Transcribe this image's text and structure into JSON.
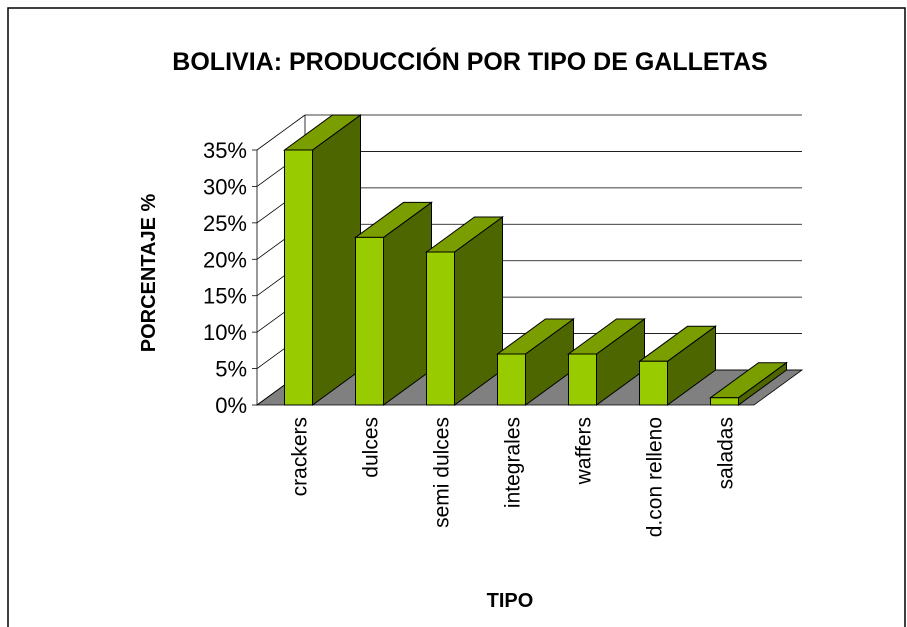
{
  "chart_data": {
    "type": "bar3d",
    "title": "BOLIVIA: PRODUCCIÓN POR TIPO DE GALLETAS",
    "x_label": "TIPO",
    "y_label": "PORCENTAJE %",
    "categories": [
      "crackers",
      "dulces",
      "semi dulces",
      "integrales",
      "waffers",
      "d.con relleno",
      "saladas"
    ],
    "values": [
      35,
      23,
      21,
      7,
      7,
      6,
      1
    ],
    "color": "#99cc00",
    "ylim": [
      0,
      35
    ],
    "yticks": [
      {
        "value": 0,
        "label": "0%"
      },
      {
        "value": 5,
        "label": "5%"
      },
      {
        "value": 10,
        "label": "10%"
      },
      {
        "value": 15,
        "label": "15%"
      },
      {
        "value": 20,
        "label": "20%"
      },
      {
        "value": 25,
        "label": "25%"
      },
      {
        "value": 30,
        "label": "30%"
      },
      {
        "value": 35,
        "label": "35%"
      }
    ],
    "grid": true
  }
}
